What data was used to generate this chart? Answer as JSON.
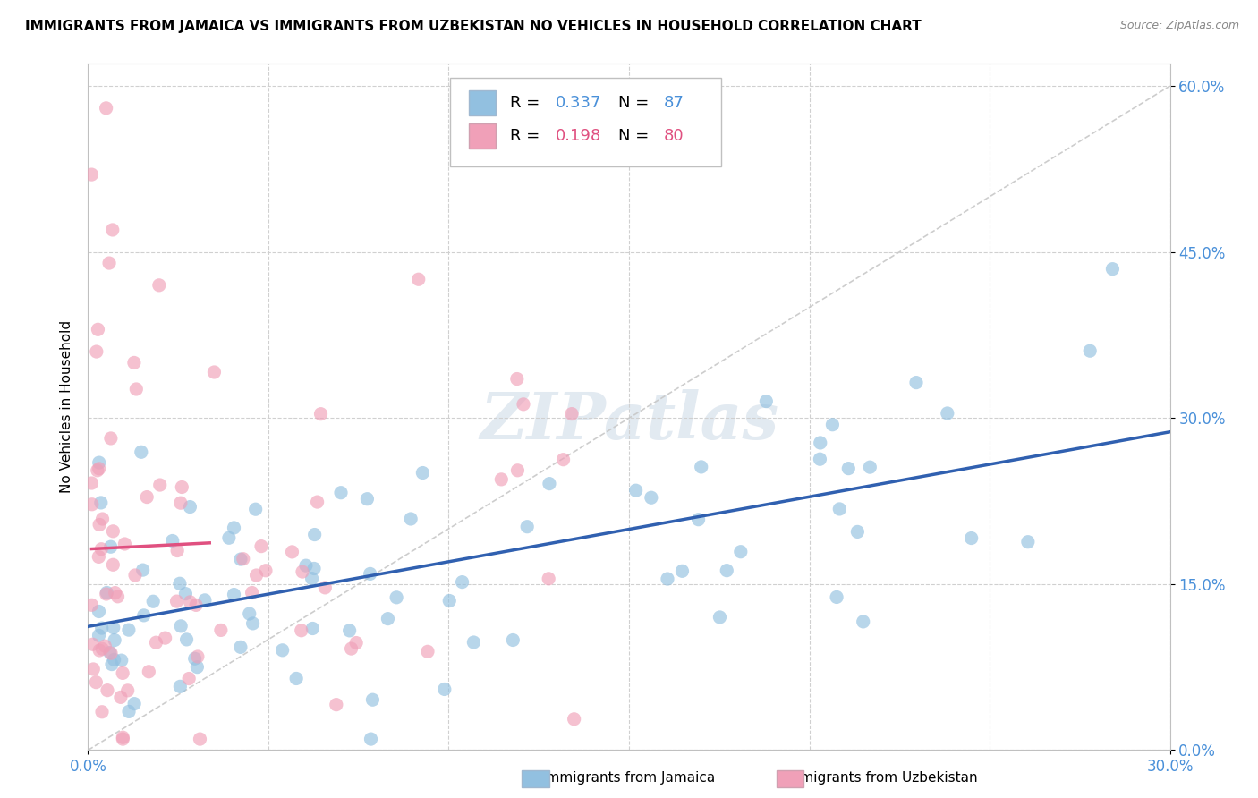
{
  "title": "IMMIGRANTS FROM JAMAICA VS IMMIGRANTS FROM UZBEKISTAN NO VEHICLES IN HOUSEHOLD CORRELATION CHART",
  "source": "Source: ZipAtlas.com",
  "ylabel": "No Vehicles in Household",
  "ytick_vals": [
    0.0,
    15.0,
    30.0,
    45.0,
    60.0
  ],
  "xlim": [
    0.0,
    30.0
  ],
  "ylim": [
    0.0,
    62.0
  ],
  "legend1_r": "0.337",
  "legend1_n": "87",
  "legend2_r": "0.198",
  "legend2_n": "80",
  "color_jamaica": "#92c0e0",
  "color_uzbekistan": "#f0a0b8",
  "color_jamaica_line": "#3060b0",
  "color_uzbekistan_line": "#e05080",
  "watermark": "ZIPatlas",
  "jamaica_seed": 101,
  "uzbekistan_seed": 202
}
